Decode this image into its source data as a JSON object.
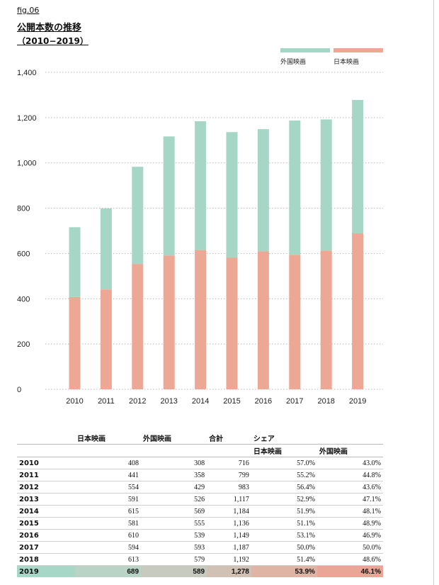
{
  "figure_label": "fig.06",
  "title": "公開本数の推移",
  "subtitle": "（2010−2019）",
  "colors": {
    "foreign": "#a6d7c6",
    "japanese": "#eda895"
  },
  "chart_data": {
    "type": "bar",
    "stacked": true,
    "categories": [
      "2010",
      "2011",
      "2012",
      "2013",
      "2014",
      "2015",
      "2016",
      "2017",
      "2018",
      "2019"
    ],
    "series": [
      {
        "name": "日本映画",
        "values": [
          408,
          441,
          554,
          591,
          615,
          581,
          610,
          594,
          613,
          689
        ]
      },
      {
        "name": "外国映画",
        "values": [
          308,
          358,
          429,
          526,
          569,
          555,
          539,
          593,
          579,
          589
        ]
      }
    ],
    "ylim": [
      0,
      1400
    ],
    "yticks": [
      0,
      200,
      400,
      600,
      800,
      1000,
      1200,
      1400
    ],
    "ytick_labels": [
      "0",
      "200",
      "400",
      "600",
      "800",
      "1,000",
      "1,200",
      "1,400"
    ],
    "legend": [
      "外国映画",
      "日本映画"
    ],
    "legend_position": "top-right",
    "grid": "horizontal dotted"
  },
  "table": {
    "headers": {
      "japanese": "日本映画",
      "foreign": "外国映画",
      "total": "合計",
      "share": "シェア",
      "share_japanese": "日本映画",
      "share_foreign": "外国映画"
    },
    "rows": [
      {
        "year": "2010",
        "japanese": "408",
        "foreign": "308",
        "total": "716",
        "share_japanese": "57.0%",
        "share_foreign": "43.0%"
      },
      {
        "year": "2011",
        "japanese": "441",
        "foreign": "358",
        "total": "799",
        "share_japanese": "55.2%",
        "share_foreign": "44.8%"
      },
      {
        "year": "2012",
        "japanese": "554",
        "foreign": "429",
        "total": "983",
        "share_japanese": "56.4%",
        "share_foreign": "43.6%"
      },
      {
        "year": "2013",
        "japanese": "591",
        "foreign": "526",
        "total": "1,117",
        "share_japanese": "52.9%",
        "share_foreign": "47.1%"
      },
      {
        "year": "2014",
        "japanese": "615",
        "foreign": "569",
        "total": "1,184",
        "share_japanese": "51.9%",
        "share_foreign": "48.1%"
      },
      {
        "year": "2015",
        "japanese": "581",
        "foreign": "555",
        "total": "1,136",
        "share_japanese": "51.1%",
        "share_foreign": "48.9%"
      },
      {
        "year": "2016",
        "japanese": "610",
        "foreign": "539",
        "total": "1,149",
        "share_japanese": "53.1%",
        "share_foreign": "46.9%"
      },
      {
        "year": "2017",
        "japanese": "594",
        "foreign": "593",
        "total": "1,187",
        "share_japanese": "50.0%",
        "share_foreign": "50.0%"
      },
      {
        "year": "2018",
        "japanese": "613",
        "foreign": "579",
        "total": "1,192",
        "share_japanese": "51.4%",
        "share_foreign": "48.6%"
      },
      {
        "year": "2019",
        "japanese": "689",
        "foreign": "589",
        "total": "1,278",
        "share_japanese": "53.9%",
        "share_foreign": "46.1%"
      }
    ]
  }
}
